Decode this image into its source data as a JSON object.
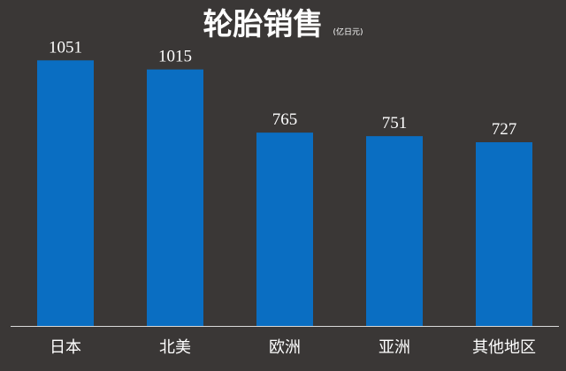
{
  "colors": {
    "background": "#3a3736",
    "bar": "#0a6ec2",
    "text": "#ffffff",
    "axis": "#d9d9d9"
  },
  "chart_data": {
    "type": "bar",
    "title": "轮胎销售",
    "subtitle": "(亿日元)",
    "categories": [
      "日本",
      "北美",
      "欧洲",
      "亚洲",
      "其他地区"
    ],
    "values": [
      1051,
      1015,
      765,
      751,
      727
    ],
    "xlabel": "",
    "ylabel": "",
    "ylim": [
      0,
      1150
    ],
    "grid": false,
    "data_labels": true
  }
}
